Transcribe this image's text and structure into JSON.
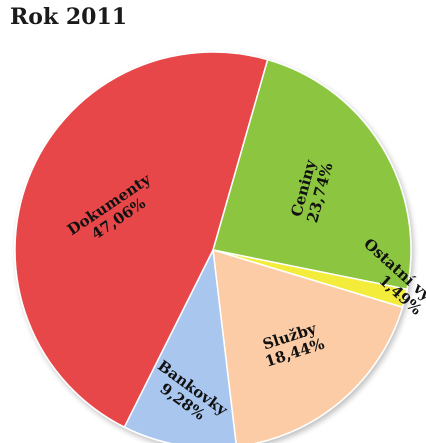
{
  "chart_data": {
    "type": "pie",
    "title": "Rok 2011",
    "slices": [
      {
        "label": "Ceniny",
        "value_label": "23,74%",
        "value": 23.74,
        "color": "#8cc63f"
      },
      {
        "label": "Ostatní výroba",
        "value_label": "1,49%",
        "value": 1.49,
        "color": "#f4ec3a"
      },
      {
        "label": "Služby",
        "value_label": "18,44%",
        "value": 18.44,
        "color": "#fbcca5"
      },
      {
        "label": "Bankovky",
        "value_label": "9,28%",
        "value": 9.28,
        "color": "#a9c6ef"
      },
      {
        "label": "Dokumenty",
        "value_label": "47,06%",
        "value": 47.06,
        "color": "#e8474a"
      }
    ]
  }
}
